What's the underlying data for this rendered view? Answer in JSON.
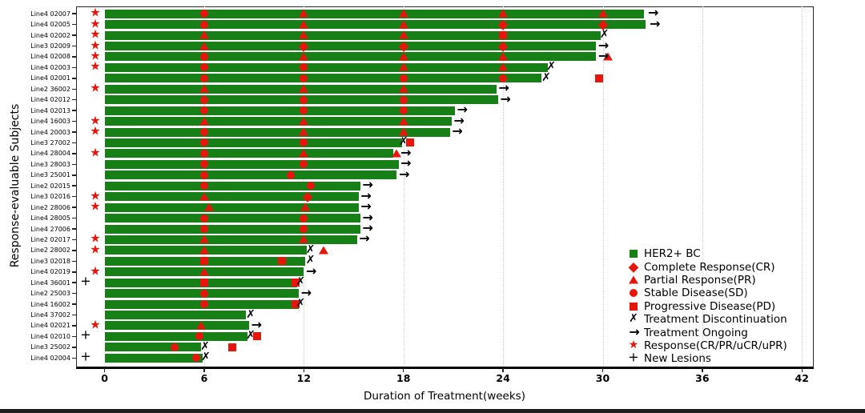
{
  "chart_data": {
    "type": "bar",
    "subtype": "swimmer-plot",
    "xlabel": "Duration of Treatment(weeks)",
    "ylabel": "Response-evaluable Subjects",
    "x_ticks": [
      0,
      6,
      12,
      18,
      24,
      30,
      36,
      42
    ],
    "xlim": [
      -1.7,
      42.7
    ],
    "grid": "vertical-dotted",
    "colors": {
      "bar": "#168016",
      "response_red": "#e8150d",
      "black": "#000000"
    },
    "icons": {
      "discontinuation": "✗",
      "ongoing": "→",
      "response": "★",
      "new_lesions": "+"
    },
    "legend_position": "lower right",
    "legend": [
      {
        "marker": "BC",
        "label": "HER2+ BC"
      },
      {
        "marker": "CR",
        "label": "Complete Response(CR)"
      },
      {
        "marker": "PR",
        "label": "Partial Response(PR)"
      },
      {
        "marker": "SD",
        "label": "Stable Disease(SD)"
      },
      {
        "marker": "PD",
        "label": "Progressive Disease(PD)"
      },
      {
        "marker": "x",
        "label": "Treatment Discontinuation"
      },
      {
        "marker": "arrow",
        "label": "Treatment Ongoing"
      },
      {
        "marker": "star",
        "label": "Response(CR/PR/uCR/uPR)"
      },
      {
        "marker": "plus",
        "label": "New Lesions"
      }
    ],
    "rows": [
      {
        "label": "Line4 02007",
        "pre": "star",
        "bar_end": 32.5,
        "markers": [
          [
            6,
            "SD"
          ],
          [
            12,
            "PR"
          ],
          [
            18,
            "PR"
          ],
          [
            24,
            "PR"
          ],
          [
            30,
            "PR"
          ]
        ],
        "end_marker": {
          "t": "arrow",
          "w": 33.0
        }
      },
      {
        "label": "Line4 02005",
        "pre": "star",
        "bar_end": 32.6,
        "markers": [
          [
            6,
            "SD"
          ],
          [
            12,
            "PR"
          ],
          [
            18,
            "PR"
          ],
          [
            24,
            "CR"
          ],
          [
            30,
            "CR"
          ]
        ],
        "end_marker": {
          "t": "arrow",
          "w": 33.1
        }
      },
      {
        "label": "Line4 02002",
        "pre": "star",
        "bar_end": 29.9,
        "markers": [
          [
            6,
            "PR"
          ],
          [
            12,
            "PR"
          ],
          [
            18,
            "PR"
          ],
          [
            24,
            "PD"
          ]
        ],
        "end_marker": {
          "t": "x",
          "w": 30.1
        }
      },
      {
        "label": "Line3 02009",
        "pre": "star",
        "bar_end": 29.6,
        "markers": [
          [
            6,
            "PR"
          ],
          [
            12,
            "CR"
          ],
          [
            18,
            "CR"
          ],
          [
            24,
            "CR"
          ]
        ],
        "end_marker": {
          "t": "arrow",
          "w": 30.0
        }
      },
      {
        "label": "Line4 02008",
        "pre": "star",
        "bar_end": 29.6,
        "markers": [
          [
            6,
            "SD"
          ],
          [
            12,
            "PR"
          ],
          [
            18,
            "PR"
          ],
          [
            24,
            "PR"
          ],
          [
            30.3,
            "PR"
          ]
        ],
        "end_marker": {
          "t": "arrow",
          "w": 30.0
        }
      },
      {
        "label": "Line4 02003",
        "pre": "star",
        "bar_end": 26.7,
        "markers": [
          [
            6,
            "SD"
          ],
          [
            12,
            "SD"
          ],
          [
            18,
            "PR"
          ],
          [
            24,
            "PR"
          ]
        ],
        "end_marker": {
          "t": "x",
          "w": 26.9
        }
      },
      {
        "label": "Line4 02001",
        "pre": null,
        "bar_end": 26.3,
        "markers": [
          [
            6,
            "SD"
          ],
          [
            12,
            "SD"
          ],
          [
            18,
            "SD"
          ],
          [
            24,
            "SD"
          ],
          [
            29.8,
            "PD"
          ]
        ],
        "end_marker": {
          "t": "x",
          "w": 26.6
        }
      },
      {
        "label": "Line2 36002",
        "pre": "star",
        "bar_end": 23.6,
        "markers": [
          [
            6,
            "PR"
          ],
          [
            12,
            "PR"
          ],
          [
            18,
            "PR"
          ]
        ],
        "end_marker": {
          "t": "arrow",
          "w": 24.0
        }
      },
      {
        "label": "Line4 02012",
        "pre": null,
        "bar_end": 23.7,
        "markers": [
          [
            6,
            "SD"
          ],
          [
            12,
            "SD"
          ],
          [
            18,
            "SD"
          ]
        ],
        "end_marker": {
          "t": "arrow",
          "w": 24.1
        }
      },
      {
        "label": "Line4 02013",
        "pre": null,
        "bar_end": 21.1,
        "markers": [
          [
            6,
            "SD"
          ],
          [
            12,
            "SD"
          ],
          [
            18,
            "SD"
          ]
        ],
        "end_marker": {
          "t": "arrow",
          "w": 21.5
        }
      },
      {
        "label": "Line4 16003",
        "pre": "star",
        "bar_end": 20.9,
        "markers": [
          [
            6,
            "PR"
          ],
          [
            12,
            "PR"
          ],
          [
            18,
            "PR"
          ]
        ],
        "end_marker": {
          "t": "arrow",
          "w": 21.3
        }
      },
      {
        "label": "Line4 20003",
        "pre": "star",
        "bar_end": 20.8,
        "markers": [
          [
            6,
            "SD"
          ],
          [
            12,
            "PR"
          ],
          [
            18,
            "PR"
          ]
        ],
        "end_marker": {
          "t": "arrow",
          "w": 21.2
        }
      },
      {
        "label": "Line3 27002",
        "pre": null,
        "bar_end": 17.9,
        "markers": [
          [
            6,
            "SD"
          ],
          [
            12,
            "SD"
          ],
          [
            18.4,
            "PD"
          ]
        ],
        "end_marker": {
          "t": "x",
          "w": 18.0
        }
      },
      {
        "label": "Line4 28004",
        "pre": "star",
        "bar_end": 17.4,
        "markers": [
          [
            6,
            "SD"
          ],
          [
            12,
            "PR"
          ],
          [
            17.6,
            "PR"
          ]
        ],
        "end_marker": {
          "t": "arrow",
          "w": 18.1
        }
      },
      {
        "label": "Line3 28003",
        "pre": null,
        "bar_end": 17.7,
        "markers": [
          [
            6,
            "SD"
          ],
          [
            12,
            "SD"
          ]
        ],
        "end_marker": {
          "t": "arrow",
          "w": 18.1
        }
      },
      {
        "label": "Line3 25001",
        "pre": null,
        "bar_end": 17.6,
        "markers": [
          [
            6,
            "SD"
          ],
          [
            11.2,
            "SD"
          ]
        ],
        "end_marker": {
          "t": "arrow",
          "w": 18.0
        }
      },
      {
        "label": "Line2 02015",
        "pre": null,
        "bar_end": 15.4,
        "markers": [
          [
            6,
            "SD"
          ],
          [
            12.4,
            "SD"
          ]
        ],
        "end_marker": {
          "t": "arrow",
          "w": 15.8
        }
      },
      {
        "label": "Line3 02016",
        "pre": "star",
        "bar_end": 15.3,
        "markers": [
          [
            6,
            "PR"
          ],
          [
            12.2,
            "CR"
          ]
        ],
        "end_marker": {
          "t": "arrow",
          "w": 15.7
        }
      },
      {
        "label": "Line2 28006",
        "pre": "star",
        "bar_end": 15.3,
        "markers": [
          [
            6.3,
            "PR"
          ],
          [
            12.1,
            "PR"
          ]
        ],
        "end_marker": {
          "t": "arrow",
          "w": 15.7
        }
      },
      {
        "label": "Line4 28005",
        "pre": null,
        "bar_end": 15.4,
        "markers": [
          [
            6,
            "SD"
          ],
          [
            12,
            "SD"
          ]
        ],
        "end_marker": {
          "t": "arrow",
          "w": 15.8
        }
      },
      {
        "label": "Line4 27006",
        "pre": null,
        "bar_end": 15.4,
        "markers": [
          [
            6,
            "SD"
          ],
          [
            12,
            "SD"
          ]
        ],
        "end_marker": {
          "t": "arrow",
          "w": 15.8
        }
      },
      {
        "label": "Line2 02017",
        "pre": "star",
        "bar_end": 15.2,
        "markers": [
          [
            6,
            "PR"
          ],
          [
            12,
            "PR"
          ]
        ],
        "end_marker": {
          "t": "arrow",
          "w": 15.6
        }
      },
      {
        "label": "Line2 28002",
        "pre": "star",
        "bar_end": 12.2,
        "markers": [
          [
            6,
            "PR"
          ],
          [
            13.2,
            "PR"
          ]
        ],
        "end_marker": {
          "t": "x",
          "w": 12.4
        }
      },
      {
        "label": "Line3 02018",
        "pre": null,
        "bar_end": 12.1,
        "markers": [
          [
            6,
            "PD"
          ],
          [
            10.7,
            "PD"
          ]
        ],
        "end_marker": {
          "t": "x",
          "w": 12.4
        }
      },
      {
        "label": "Line4 02019",
        "pre": "star",
        "bar_end": 12.0,
        "markers": [
          [
            6,
            "PR"
          ]
        ],
        "end_marker": {
          "t": "arrow",
          "w": 12.4
        }
      },
      {
        "label": "Line4 36001",
        "pre": "plus",
        "bar_end": 11.6,
        "markers": [
          [
            6,
            "PD"
          ],
          [
            11.5,
            "PD"
          ]
        ],
        "end_marker": {
          "t": "x",
          "w": 11.8
        }
      },
      {
        "label": "Line2 25003",
        "pre": null,
        "bar_end": 11.7,
        "markers": [
          [
            6,
            "SD"
          ]
        ],
        "end_marker": {
          "t": "arrow",
          "w": 12.1
        }
      },
      {
        "label": "Line4 16002",
        "pre": null,
        "bar_end": 11.7,
        "markers": [
          [
            6,
            "SD"
          ],
          [
            11.5,
            "PD"
          ]
        ],
        "end_marker": {
          "t": "x",
          "w": 11.8
        }
      },
      {
        "label": "Line4 37002",
        "pre": null,
        "bar_end": 8.5,
        "markers": [],
        "end_marker": {
          "t": "x",
          "w": 8.8
        }
      },
      {
        "label": "Line4 02021",
        "pre": "star",
        "bar_end": 8.7,
        "markers": [
          [
            5.8,
            "PR"
          ]
        ],
        "end_marker": {
          "t": "arrow",
          "w": 9.1
        }
      },
      {
        "label": "Line4 02010",
        "pre": "plus",
        "bar_end": 8.6,
        "markers": [
          [
            5.7,
            "SD"
          ],
          [
            9.2,
            "PD"
          ]
        ],
        "end_marker": {
          "t": "x",
          "w": 8.8
        }
      },
      {
        "label": "Line3 25002",
        "pre": null,
        "bar_end": 5.8,
        "markers": [
          [
            4.2,
            "SD"
          ],
          [
            7.7,
            "PD"
          ]
        ],
        "end_marker": {
          "t": "x",
          "w": 6.05
        }
      },
      {
        "label": "Line4 02004",
        "pre": "plus",
        "bar_end": 5.9,
        "markers": [
          [
            5.5,
            "SD"
          ]
        ],
        "end_marker": {
          "t": "x",
          "w": 6.1
        }
      }
    ]
  }
}
